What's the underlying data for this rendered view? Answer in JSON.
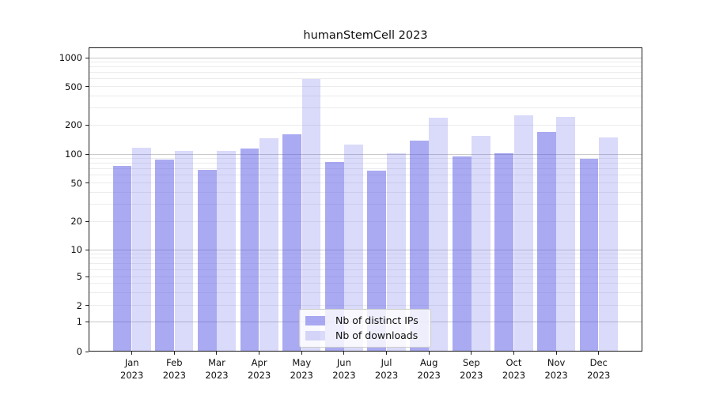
{
  "title": "humanStemCell 2023",
  "legend": {
    "items": [
      {
        "label": "Nb of distinct IPs",
        "color": "rgba(85,85,230,0.5)"
      },
      {
        "label": "Nb of downloads",
        "color": "rgba(85,85,230,0.22)"
      }
    ]
  },
  "chart_data": {
    "type": "bar",
    "title": "humanStemCell 2023",
    "categories": [
      "Jan 2023",
      "Feb 2023",
      "Mar 2023",
      "Apr 2023",
      "May 2023",
      "Jun 2023",
      "Jul 2023",
      "Aug 2023",
      "Sep 2023",
      "Oct 2023",
      "Nov 2023",
      "Dec 2023"
    ],
    "x_tick_months": [
      "Jan",
      "Feb",
      "Mar",
      "Apr",
      "May",
      "Jun",
      "Jul",
      "Aug",
      "Sep",
      "Oct",
      "Nov",
      "Dec"
    ],
    "x_tick_year": "2023",
    "series": [
      {
        "name": "Nb of distinct IPs",
        "color": "rgba(85,85,230,0.5)",
        "values": [
          75,
          88,
          69,
          114,
          160,
          82,
          67,
          137,
          94,
          101,
          169,
          90
        ]
      },
      {
        "name": "Nb of downloads",
        "color": "rgba(85,85,230,0.22)",
        "values": [
          116,
          108,
          107,
          146,
          600,
          125,
          101,
          240,
          154,
          250,
          242,
          149
        ]
      }
    ],
    "xlabel": "",
    "ylabel": "",
    "yscale": "symlog",
    "y_ticks": [
      0,
      1,
      2,
      5,
      10,
      20,
      50,
      100,
      200,
      500,
      1000
    ],
    "ylim": [
      0,
      1290
    ],
    "grid": "horizontal, major and minor",
    "legend_position": "lower center"
  }
}
